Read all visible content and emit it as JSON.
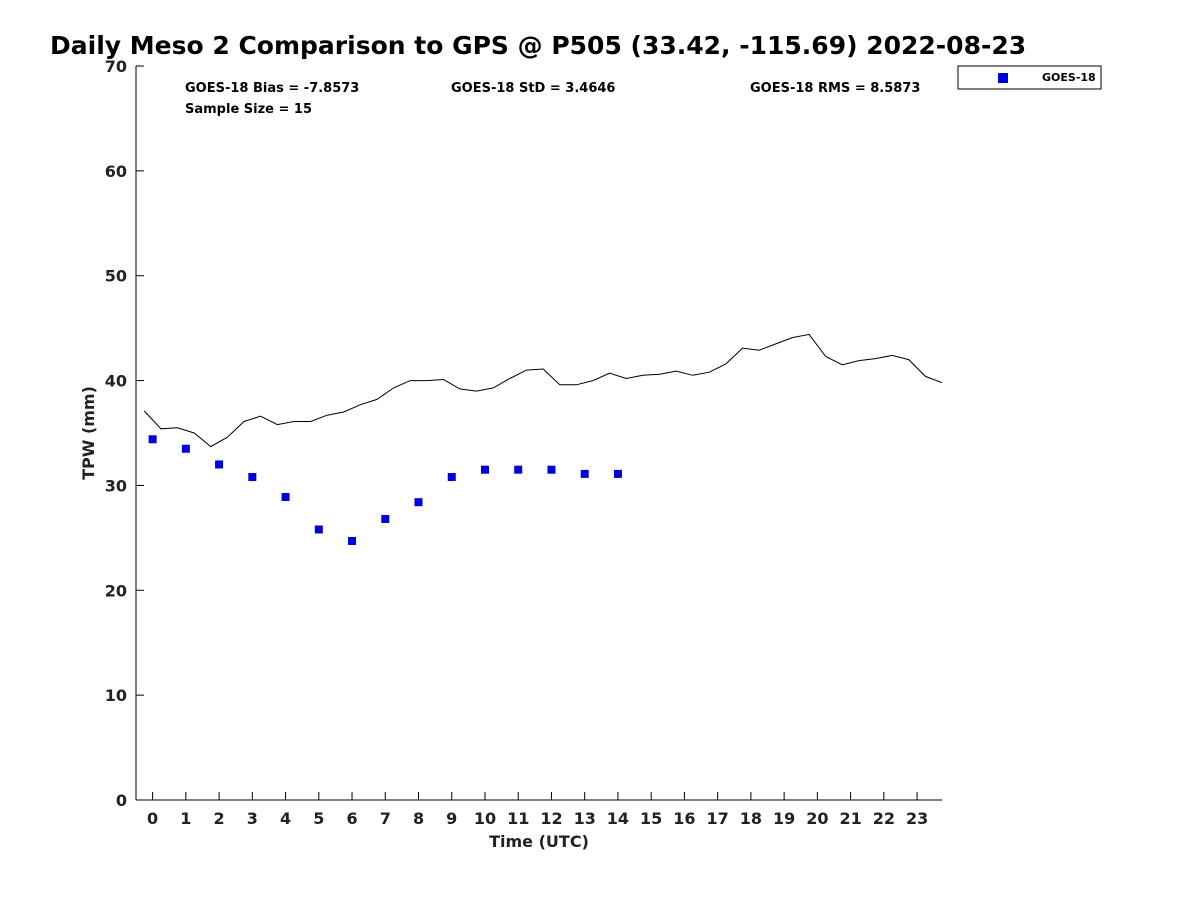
{
  "chart_data": {
    "type": "scatter",
    "title": "Daily Meso 2 Comparison to GPS @ P505 (33.42, -115.69) 2022-08-23",
    "xlabel": "Time (UTC)",
    "ylabel": "TPW (mm)",
    "xlim": [
      -0.5,
      23.75
    ],
    "ylim": [
      0,
      70
    ],
    "x_ticks": [
      0,
      1,
      2,
      3,
      4,
      5,
      6,
      7,
      8,
      9,
      10,
      11,
      12,
      13,
      14,
      15,
      16,
      17,
      18,
      19,
      20,
      21,
      22,
      23
    ],
    "y_ticks": [
      0,
      10,
      20,
      30,
      40,
      50,
      60,
      70
    ],
    "grid": false,
    "legend_position": "outside-top-right",
    "stats": {
      "bias": "GOES-18 Bias = -7.8573",
      "std": "GOES-18 StD = 3.4646",
      "rms": "GOES-18 RMS = 8.5873",
      "sample_size": "Sample Size = 15"
    },
    "series": [
      {
        "name": "GOES-18",
        "kind": "scatter",
        "color": "#0000dd",
        "marker": "square",
        "x": [
          0,
          1,
          2,
          3,
          4,
          5,
          6,
          7,
          8,
          9,
          10,
          11,
          12,
          13,
          14
        ],
        "y": [
          34.4,
          33.5,
          32.0,
          30.8,
          28.9,
          25.8,
          24.7,
          26.8,
          28.4,
          30.8,
          31.5,
          31.5,
          31.5,
          31.1,
          31.1
        ]
      },
      {
        "kind": "line",
        "color": "#000000",
        "x": [
          -0.25,
          0.25,
          0.75,
          1.25,
          1.75,
          2.25,
          2.75,
          3.25,
          3.75,
          4.25,
          4.75,
          5.25,
          5.75,
          6.25,
          6.75,
          7.25,
          7.75,
          8.25,
          8.75,
          9.25,
          9.75,
          10.25,
          10.75,
          11.25,
          11.75,
          12.25,
          12.75,
          13.25,
          13.75,
          14.25,
          14.75,
          15.25,
          15.75,
          16.25,
          16.75,
          17.25,
          17.75,
          18.25,
          18.75,
          19.25,
          19.75,
          20.25,
          20.75,
          21.25,
          21.75,
          22.25,
          22.75,
          23.25,
          23.75
        ],
        "y": [
          37.1,
          35.4,
          35.5,
          35.0,
          33.7,
          34.6,
          36.1,
          36.6,
          35.8,
          36.1,
          36.1,
          36.7,
          37.0,
          37.7,
          38.2,
          39.3,
          40.0,
          40.0,
          40.1,
          39.2,
          39.0,
          39.3,
          40.2,
          41.0,
          41.1,
          39.6,
          39.6,
          40.0,
          40.7,
          40.2,
          40.5,
          40.6,
          40.9,
          40.5,
          40.8,
          41.6,
          43.1,
          42.9,
          43.5,
          44.1,
          44.4,
          42.3,
          41.5,
          41.9,
          42.1,
          42.4,
          42.0,
          40.4,
          39.8
        ]
      }
    ]
  }
}
